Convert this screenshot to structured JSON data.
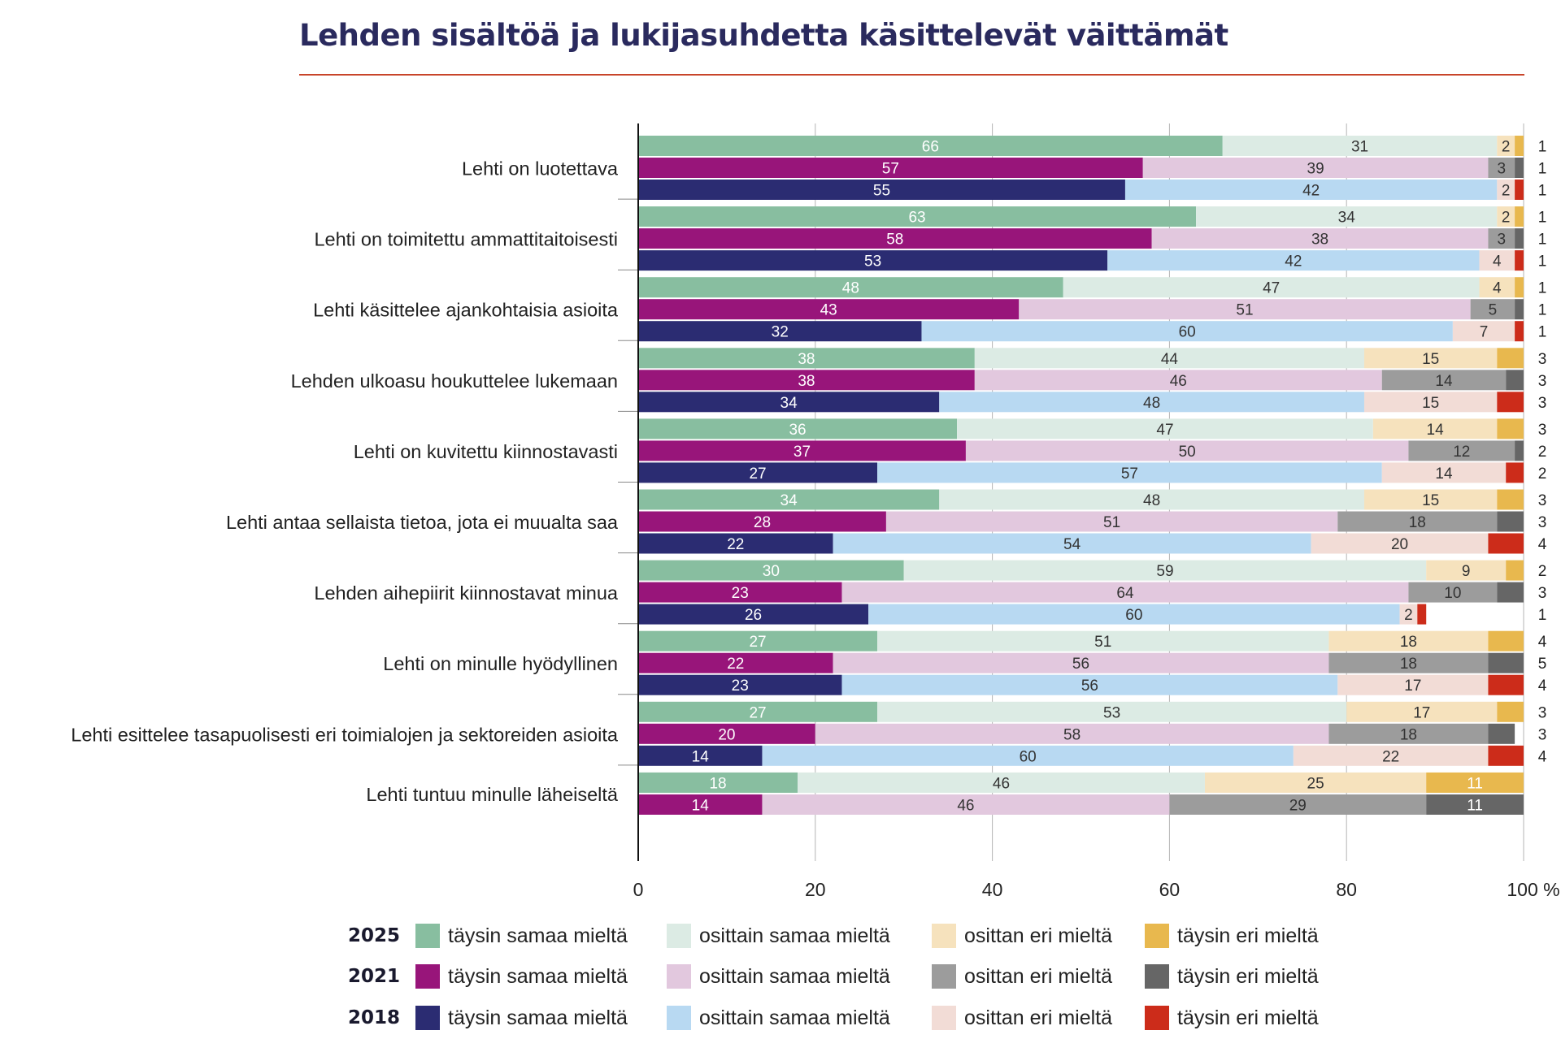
{
  "title": "Lehden sisältöä ja lukijasuhdetta käsittelevät väittämät",
  "chart_data": {
    "type": "bar",
    "orientation": "horizontal",
    "stacked": true,
    "xlim": [
      0,
      100
    ],
    "x_ticks": [
      "0",
      "20",
      "40",
      "60",
      "80",
      "100 %"
    ],
    "years": [
      "2025",
      "2021",
      "2018"
    ],
    "response_labels": [
      "täysin samaa mieltä",
      "osittain samaa mieltä",
      "osittan eri mieltä",
      "täysin eri mieltä"
    ],
    "colors": {
      "2025": [
        "#88bea0",
        "#dcebe4",
        "#f6e2bd",
        "#e8b84e"
      ],
      "2021": [
        "#98157a",
        "#e2c8de",
        "#9c9c9c",
        "#666666"
      ],
      "2018": [
        "#2b2c72",
        "#b8d9f2",
        "#f2dcd6",
        "#cc2c1a"
      ]
    },
    "label_colors": {
      "2025": [
        "#ffffff",
        "#333333",
        "#333333",
        "#ffffff"
      ],
      "2021": [
        "#ffffff",
        "#333333",
        "#333333",
        "#ffffff"
      ],
      "2018": [
        "#ffffff",
        "#333333",
        "#333333",
        "#ffffff"
      ]
    },
    "categories": [
      {
        "label": "Lehti on luotettava",
        "bars": [
          {
            "year": "2025",
            "values": [
              66,
              31,
              2,
              1
            ]
          },
          {
            "year": "2021",
            "values": [
              57,
              39,
              3,
              1
            ]
          },
          {
            "year": "2018",
            "values": [
              55,
              42,
              2,
              1
            ]
          }
        ]
      },
      {
        "label": "Lehti on toimitettu ammattitaitoisesti",
        "bars": [
          {
            "year": "2025",
            "values": [
              63,
              34,
              2,
              1
            ]
          },
          {
            "year": "2021",
            "values": [
              58,
              38,
              3,
              1
            ]
          },
          {
            "year": "2018",
            "values": [
              53,
              42,
              4,
              1
            ]
          }
        ]
      },
      {
        "label": "Lehti käsittelee ajankohtaisia asioita",
        "bars": [
          {
            "year": "2025",
            "values": [
              48,
              47,
              4,
              1
            ]
          },
          {
            "year": "2021",
            "values": [
              43,
              51,
              5,
              1
            ]
          },
          {
            "year": "2018",
            "values": [
              32,
              60,
              7,
              1
            ]
          }
        ]
      },
      {
        "label": "Lehden ulkoasu houkuttelee lukemaan",
        "bars": [
          {
            "year": "2025",
            "values": [
              38,
              44,
              15,
              3
            ]
          },
          {
            "year": "2021",
            "values": [
              38,
              46,
              14,
              3
            ]
          },
          {
            "year": "2018",
            "values": [
              34,
              48,
              15,
              3
            ]
          }
        ]
      },
      {
        "label": "Lehti on kuvitettu kiinnostavasti",
        "bars": [
          {
            "year": "2025",
            "values": [
              36,
              47,
              14,
              3
            ]
          },
          {
            "year": "2021",
            "values": [
              37,
              50,
              12,
              2
            ]
          },
          {
            "year": "2018",
            "values": [
              27,
              57,
              14,
              2
            ]
          }
        ]
      },
      {
        "label": "Lehti antaa sellaista tietoa, jota ei muualta saa",
        "bars": [
          {
            "year": "2025",
            "values": [
              34,
              48,
              15,
              3
            ]
          },
          {
            "year": "2021",
            "values": [
              28,
              51,
              18,
              3
            ]
          },
          {
            "year": "2018",
            "values": [
              22,
              54,
              20,
              4
            ]
          }
        ]
      },
      {
        "label": "Lehden aihepiirit kiinnostavat minua",
        "bars": [
          {
            "year": "2025",
            "values": [
              30,
              59,
              9,
              2
            ]
          },
          {
            "year": "2021",
            "values": [
              23,
              64,
              10,
              3
            ]
          },
          {
            "year": "2018",
            "values": [
              26,
              60,
              2,
              1
            ]
          }
        ]
      },
      {
        "label": "Lehti on minulle hyödyllinen",
        "bars": [
          {
            "year": "2025",
            "values": [
              27,
              51,
              18,
              4
            ]
          },
          {
            "year": "2021",
            "values": [
              22,
              56,
              18,
              5
            ]
          },
          {
            "year": "2018",
            "values": [
              23,
              56,
              17,
              4
            ]
          }
        ]
      },
      {
        "label": "Lehti esittelee tasapuolisesti eri toimialojen ja sektoreiden asioita",
        "bars": [
          {
            "year": "2025",
            "values": [
              27,
              53,
              17,
              3
            ]
          },
          {
            "year": "2021",
            "values": [
              20,
              58,
              18,
              3
            ]
          },
          {
            "year": "2018",
            "values": [
              14,
              60,
              22,
              4
            ]
          }
        ]
      },
      {
        "label": "Lehti tuntuu minulle läheiseltä",
        "bars": [
          {
            "year": "2025",
            "values": [
              18,
              46,
              25,
              11
            ]
          },
          {
            "year": "2021",
            "values": [
              14,
              46,
              29,
              11
            ]
          }
        ]
      }
    ]
  }
}
